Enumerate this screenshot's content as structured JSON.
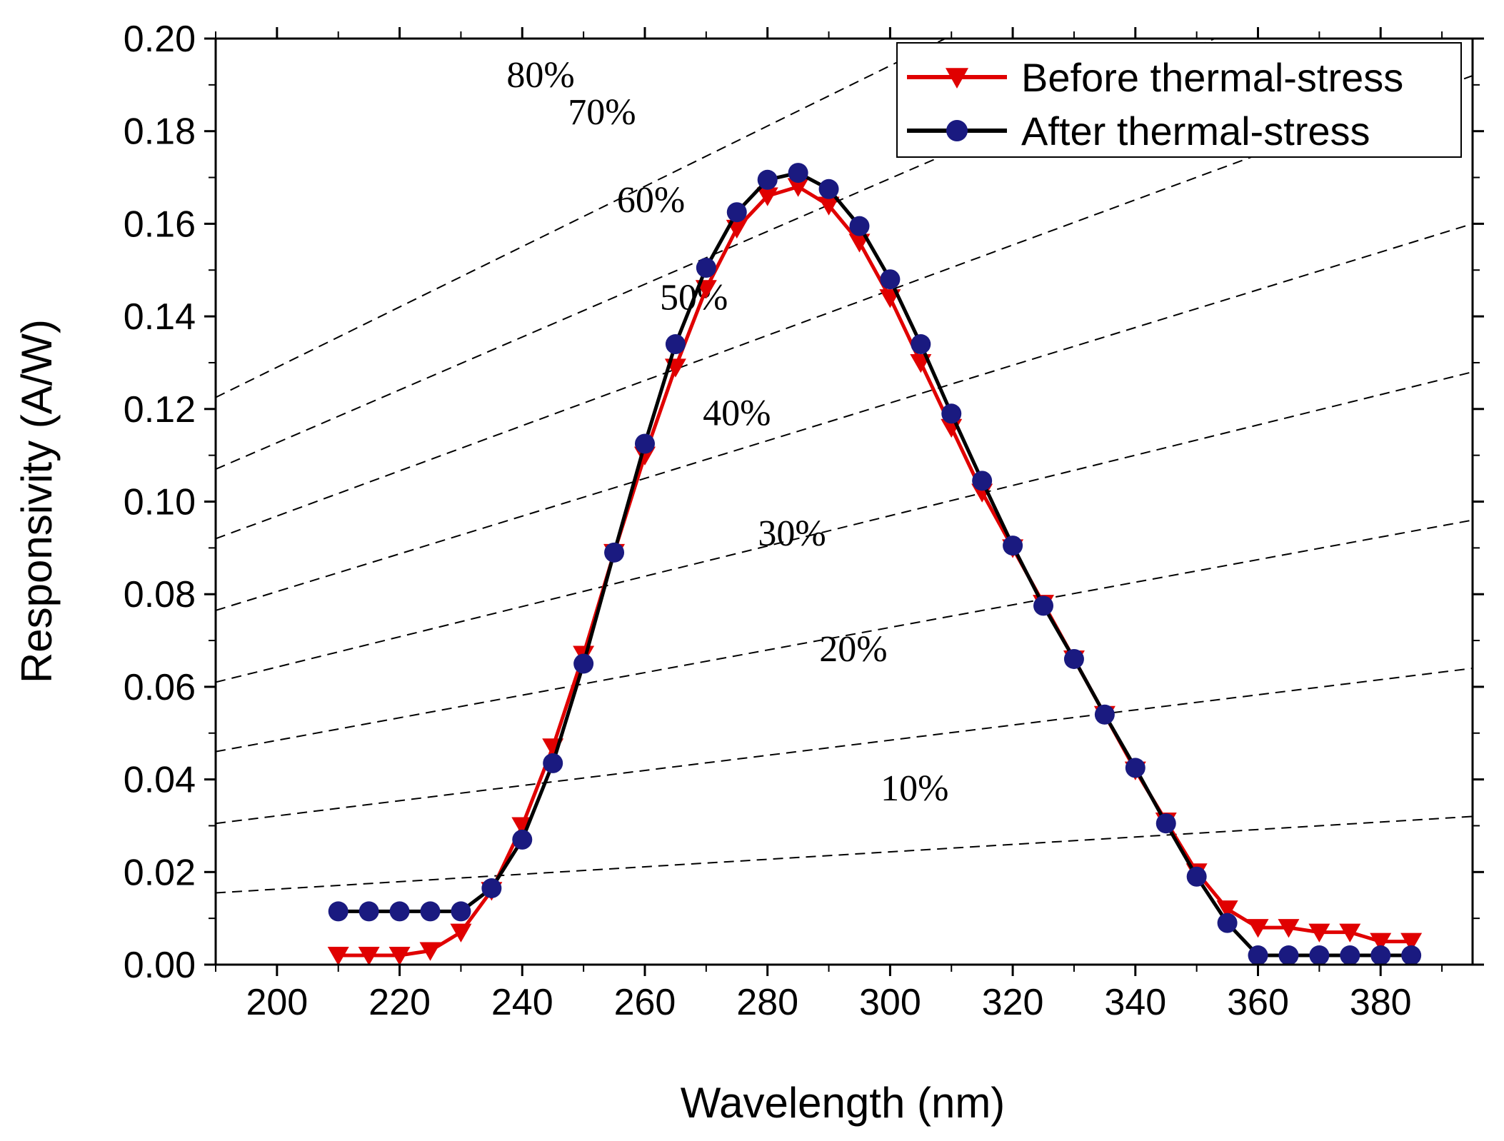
{
  "chart_data": {
    "type": "line",
    "xlabel": "Wavelength (nm)",
    "ylabel": "Responsivity (A/W)",
    "xlim": [
      190,
      395
    ],
    "ylim": [
      0,
      0.2
    ],
    "x_ticks": [
      200,
      220,
      240,
      260,
      280,
      300,
      320,
      340,
      360,
      380
    ],
    "x_tick_labels": [
      "200",
      "220",
      "240",
      "260",
      "280",
      "300",
      "320",
      "340",
      "360",
      "380"
    ],
    "y_ticks": [
      0,
      0.02,
      0.04,
      0.06,
      0.08,
      0.1,
      0.12,
      0.14,
      0.16,
      0.18,
      0.2
    ],
    "y_tick_labels": [
      "0.00",
      "0.02",
      "0.04",
      "0.06",
      "0.08",
      "0.10",
      "0.12",
      "0.14",
      "0.16",
      "0.18",
      "0.20"
    ],
    "grid": false,
    "legend_position": "top-right",
    "x": [
      210,
      215,
      220,
      225,
      230,
      235,
      240,
      245,
      250,
      255,
      260,
      265,
      270,
      275,
      280,
      285,
      290,
      295,
      300,
      305,
      310,
      315,
      320,
      325,
      330,
      335,
      340,
      345,
      350,
      355,
      360,
      365,
      370,
      375,
      380,
      385
    ],
    "series": [
      {
        "name": "Before thermal-stress",
        "color": "#e00000",
        "marker": "triangle-down",
        "values": [
          0.002,
          0.002,
          0.002,
          0.003,
          0.007,
          0.016,
          0.03,
          0.047,
          0.067,
          0.089,
          0.11,
          0.129,
          0.146,
          0.159,
          0.166,
          0.168,
          0.164,
          0.156,
          0.144,
          0.13,
          0.116,
          0.102,
          0.09,
          0.078,
          0.066,
          0.054,
          0.042,
          0.031,
          0.02,
          0.012,
          0.008,
          0.008,
          0.007,
          0.007,
          0.005,
          0.005
        ]
      },
      {
        "name": "After thermal-stress",
        "color": "#000000",
        "marker_color": "#1a1a80",
        "marker": "circle",
        "values": [
          0.0115,
          0.0115,
          0.0115,
          0.0115,
          0.0115,
          0.0165,
          0.027,
          0.0435,
          0.065,
          0.089,
          0.1125,
          0.134,
          0.1505,
          0.1625,
          0.1695,
          0.171,
          0.1675,
          0.1595,
          0.148,
          0.134,
          0.119,
          0.1045,
          0.0905,
          0.0775,
          0.066,
          0.054,
          0.0425,
          0.0305,
          0.019,
          0.009,
          0.002,
          0.002,
          0.002,
          0.002,
          0.002,
          0.002
        ]
      }
    ],
    "reference_lines": [
      {
        "label": "10%",
        "y_start": 0.0155,
        "y_end": 0.032,
        "label_x": 304,
        "label_y": 0.0355
      },
      {
        "label": "20%",
        "y_start": 0.0305,
        "y_end": 0.064,
        "label_x": 294,
        "label_y": 0.0655
      },
      {
        "label": "30%",
        "y_start": 0.046,
        "y_end": 0.096,
        "label_x": 284,
        "label_y": 0.0905
      },
      {
        "label": "40%",
        "y_start": 0.061,
        "y_end": 0.128,
        "label_x": 275,
        "label_y": 0.1165
      },
      {
        "label": "50%",
        "y_start": 0.0765,
        "y_end": 0.16,
        "label_x": 268,
        "label_y": 0.1415
      },
      {
        "label": "60%",
        "y_start": 0.092,
        "y_end": 0.192,
        "label_x": 261,
        "label_y": 0.1625
      },
      {
        "label": "70%",
        "y_start": 0.107,
        "y_end": 0.224,
        "label_x": 253,
        "label_y": 0.1815
      },
      {
        "label": "80%",
        "y_start": 0.1225,
        "y_end": 0.256,
        "label_x": 243,
        "label_y": 0.1895
      }
    ]
  }
}
